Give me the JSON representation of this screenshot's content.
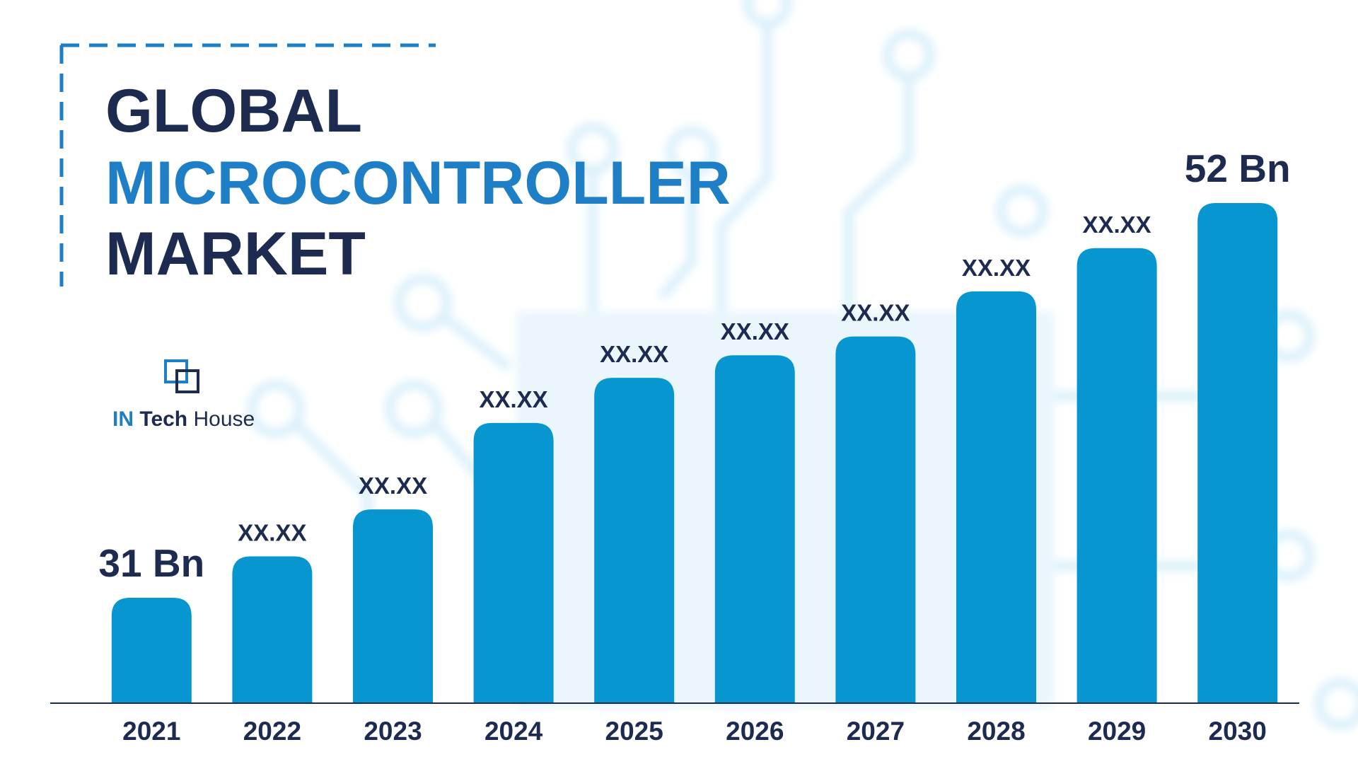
{
  "chart_data": {
    "type": "bar",
    "title": [
      "GLOBAL",
      "MICROCONTROLLER",
      "MARKET"
    ],
    "logo": [
      "IN",
      "Tech",
      "House"
    ],
    "categories": [
      "2021",
      "2022",
      "2023",
      "2024",
      "2025",
      "2026",
      "2027",
      "2028",
      "2029",
      "2030"
    ],
    "values": [
      31,
      33.2,
      35.7,
      40.3,
      42.7,
      43.9,
      44.9,
      47.3,
      49.6,
      52
    ],
    "value_labels": [
      "31 Bn",
      "XX.XX",
      "XX.XX",
      "XX.XX",
      "XX.XX",
      "XX.XX",
      "XX.XX",
      "XX.XX",
      "XX.XX",
      "52 Bn"
    ],
    "color": "#0796cf"
  }
}
